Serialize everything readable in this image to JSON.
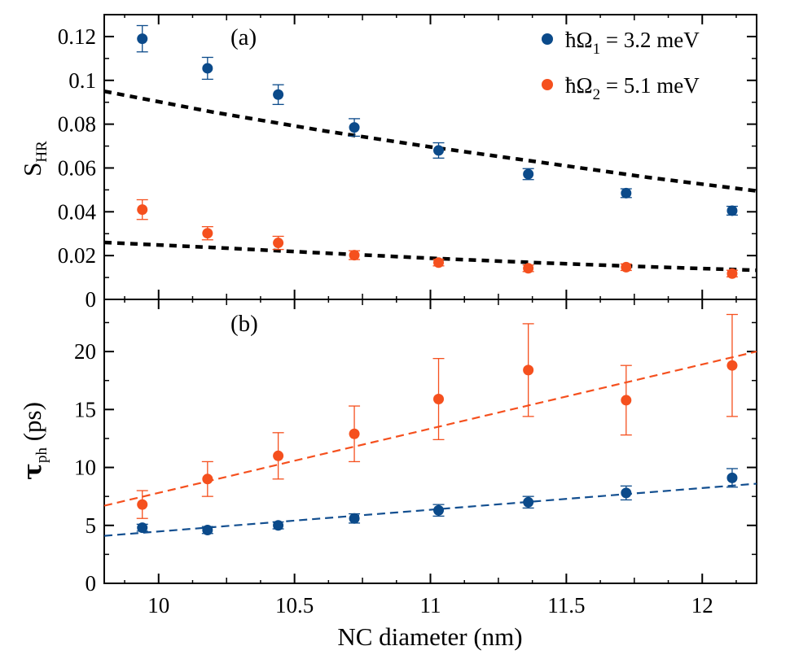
{
  "colors": {
    "blue": "#0b4a8a",
    "orange": "#f5501e",
    "blue_line": "#134f90",
    "orange_line": "#f5501e",
    "black": "#000000"
  },
  "chart_data": [
    {
      "type": "scatter",
      "panel_label": "(a)",
      "ylabel": {
        "main": "S",
        "sub": "HR"
      },
      "xlim": [
        9.8,
        12.2
      ],
      "ylim": [
        0,
        0.13
      ],
      "yticks": [
        0,
        0.02,
        0.04,
        0.06,
        0.08,
        0.1,
        0.12
      ],
      "ytick_labels": [
        "0",
        "0.02",
        "0.04",
        "0.06",
        "0.08",
        "0.1",
        "0.12"
      ],
      "xticks": [
        10,
        10.5,
        11,
        11.5,
        12
      ],
      "legend": {
        "placement": "top-right"
      },
      "series": [
        {
          "name": "ħΩ1 = 3.2 meV",
          "legend_main": "ħΩ",
          "legend_sub": "1",
          "legend_rest": " = 3.2 meV",
          "x": [
            9.94,
            10.18,
            10.44,
            10.72,
            11.03,
            11.36,
            11.72,
            12.11
          ],
          "y": [
            0.119,
            0.1055,
            0.0935,
            0.0785,
            0.068,
            0.0572,
            0.0485,
            0.0405
          ],
          "err": [
            0.006,
            0.005,
            0.0045,
            0.004,
            0.0035,
            0.0025,
            0.002,
            0.002
          ],
          "fit": {
            "x": [
              9.8,
              10.2,
              10.6,
              11.0,
              11.4,
              11.8,
              12.2
            ],
            "y": [
              0.095,
              0.0855,
              0.0771,
              0.0696,
              0.0627,
              0.0557,
              0.0495
            ]
          }
        },
        {
          "name": "ħΩ2 = 5.1 meV",
          "legend_main": "ħΩ",
          "legend_sub": "2",
          "legend_rest": " = 5.1 meV",
          "x": [
            9.94,
            10.18,
            10.44,
            10.72,
            11.03,
            11.36,
            11.72,
            12.11
          ],
          "y": [
            0.041,
            0.0302,
            0.0258,
            0.0202,
            0.0168,
            0.0142,
            0.0147,
            0.0118
          ],
          "err": [
            0.0045,
            0.003,
            0.003,
            0.002,
            0.0015,
            0.0015,
            0.0015,
            0.0015
          ],
          "fit": {
            "x": [
              9.8,
              10.2,
              10.6,
              11.0,
              11.4,
              11.8,
              12.2
            ],
            "y": [
              0.026,
              0.0237,
              0.0212,
              0.0188,
              0.0167,
              0.0149,
              0.0133
            ]
          }
        }
      ]
    },
    {
      "type": "scatter",
      "panel_label": "(b)",
      "ylabel": {
        "main": "τ",
        "sub": "ph",
        "rest": " (ps)"
      },
      "xlabel": "NC diameter (nm)",
      "xlim": [
        9.8,
        12.2
      ],
      "ylim": [
        0,
        24.5
      ],
      "yticks": [
        0,
        5,
        10,
        15,
        20
      ],
      "ytick_labels": [
        "0",
        "5",
        "10",
        "15",
        "20"
      ],
      "xticks": [
        10,
        10.5,
        11,
        11.5,
        12
      ],
      "xtick_labels": [
        "10",
        "10.5",
        "11",
        "11.5",
        "12"
      ],
      "series": [
        {
          "name": "ħΩ1 = 3.2 meV",
          "x": [
            9.94,
            10.18,
            10.44,
            10.72,
            11.03,
            11.36,
            11.72,
            12.11
          ],
          "y": [
            4.8,
            4.6,
            5.0,
            5.6,
            6.3,
            7.0,
            7.8,
            9.1
          ],
          "err": [
            0.3,
            0.3,
            0.3,
            0.4,
            0.5,
            0.5,
            0.6,
            0.8
          ],
          "fit": {
            "x": [
              9.8,
              12.2
            ],
            "y": [
              4.1,
              8.6
            ]
          }
        },
        {
          "name": "ħΩ2 = 5.1 meV",
          "x": [
            9.94,
            10.18,
            10.44,
            10.72,
            11.03,
            11.36,
            11.72,
            12.11
          ],
          "y": [
            6.8,
            9.0,
            11.0,
            12.9,
            15.9,
            18.4,
            15.8,
            18.8
          ],
          "err": [
            1.2,
            1.5,
            2.0,
            2.4,
            3.5,
            4.0,
            3.0,
            4.4
          ],
          "fit": {
            "x": [
              9.8,
              12.2
            ],
            "y": [
              6.7,
              20.0
            ]
          }
        }
      ]
    }
  ]
}
